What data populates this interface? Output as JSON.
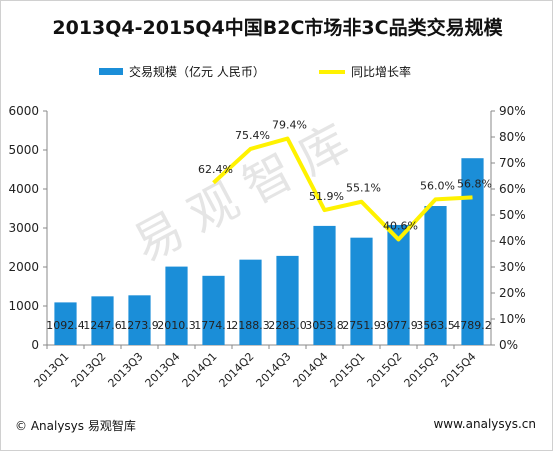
{
  "chart_data": {
    "type": "bar+line",
    "title": "2013Q4-2015Q4中国B2C市场非3C品类交易规模",
    "categories": [
      "2013Q1",
      "2013Q2",
      "2013Q3",
      "2013Q4",
      "2014Q1",
      "2014Q2",
      "2014Q3",
      "2014Q4",
      "2015Q1",
      "2015Q2",
      "2015Q3",
      "2015Q4"
    ],
    "series": [
      {
        "name": "交易规模（亿元 人民币）",
        "type": "bar",
        "axis": "left",
        "color": "#1b8ed8",
        "values": [
          1092.4,
          1247.6,
          1273.9,
          2010.3,
          1774.1,
          2188.3,
          2285.0,
          3053.8,
          2751.9,
          3077.9,
          3563.5,
          4789.2
        ],
        "labels": [
          "1092.4",
          "1247.6",
          "1273.9",
          "2010.3",
          "1774.1",
          "2188.3",
          "2285.0",
          "3053.8",
          "2751.9",
          "3077.9",
          "3563.5",
          "4789.2"
        ]
      },
      {
        "name": "同比增长率",
        "type": "line",
        "axis": "right",
        "color": "#fff200",
        "x": [
          "2014Q1",
          "2014Q2",
          "2014Q3",
          "2014Q4",
          "2015Q1",
          "2015Q2",
          "2015Q3",
          "2015Q4"
        ],
        "values": [
          62.4,
          75.4,
          79.4,
          51.9,
          55.1,
          40.6,
          56.0,
          56.8
        ],
        "labels": [
          "62.4%",
          "75.4%",
          "79.4%",
          "51.9%",
          "55.1%",
          "40.6%",
          "56.0%",
          "56.8%"
        ]
      }
    ],
    "y_left": {
      "min": 0,
      "max": 6000,
      "ticks": [
        "0",
        "1000",
        "2000",
        "3000",
        "4000",
        "5000",
        "6000"
      ]
    },
    "y_right": {
      "min": 0,
      "max": 90,
      "ticks": [
        "0%",
        "10%",
        "20%",
        "30%",
        "40%",
        "50%",
        "60%",
        "70%",
        "80%",
        "90%"
      ]
    },
    "grid": false,
    "legend_position": "top"
  },
  "watermark": "易观智库",
  "footer": {
    "source": "© Analysys 易观智库",
    "website": "www.analysys.cn"
  }
}
